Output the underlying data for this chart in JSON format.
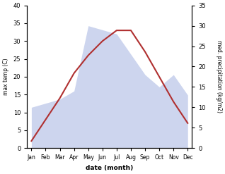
{
  "months": [
    "Jan",
    "Feb",
    "Mar",
    "Apr",
    "May",
    "Jun",
    "Jul",
    "Aug",
    "Sep",
    "Oct",
    "Nov",
    "Dec"
  ],
  "temperature": [
    2,
    8,
    14,
    21,
    26,
    30,
    33,
    33,
    27,
    20,
    13,
    7
  ],
  "precipitation": [
    10,
    11,
    12,
    14,
    30,
    29,
    28,
    23,
    18,
    15,
    18,
    13
  ],
  "temp_color": "#b03030",
  "precip_color": "#b8c4e8",
  "ylim_left": [
    0,
    40
  ],
  "ylim_right": [
    0,
    35
  ],
  "xlabel": "date (month)",
  "ylabel_left": "max temp (C)",
  "ylabel_right": "med. precipitation (kg/m2)",
  "figsize": [
    3.18,
    2.47
  ],
  "dpi": 100
}
